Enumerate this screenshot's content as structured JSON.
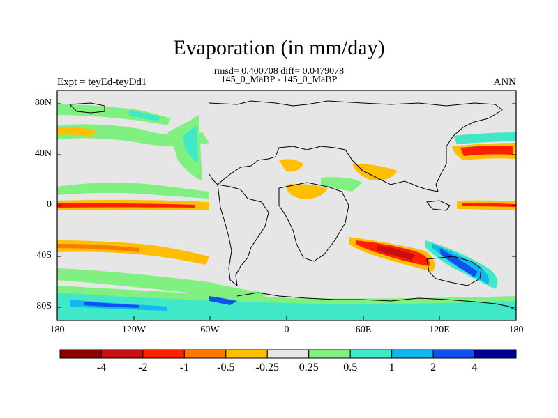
{
  "title": "Evaporation (in mm/day)",
  "stats": "rmsd= 0.400708 diff= 0.0479078",
  "cases": "145_0_MaBP - 145_0_MaBP",
  "left_label": "Expt = teyEd-teyDd1",
  "right_label": "ANN",
  "map": {
    "lat_ticks": [
      "80N",
      "40N",
      "0",
      "40S",
      "80S"
    ],
    "lon_ticks": [
      "180",
      "120W",
      "60W",
      "0",
      "60E",
      "120E",
      "180"
    ],
    "background_color": "#e6e6e6"
  },
  "colorbar": {
    "colors": [
      "#8b0000",
      "#c81010",
      "#ff2000",
      "#ff7800",
      "#ffbe00",
      "#e6e6e6",
      "#80f080",
      "#40e8c8",
      "#10b8f0",
      "#1050f0",
      "#000090"
    ],
    "labels": [
      "-4",
      "-2",
      "-1",
      "-0.5",
      "-0.25",
      "0.25",
      "0.5",
      "1",
      "2",
      "4"
    ]
  }
}
